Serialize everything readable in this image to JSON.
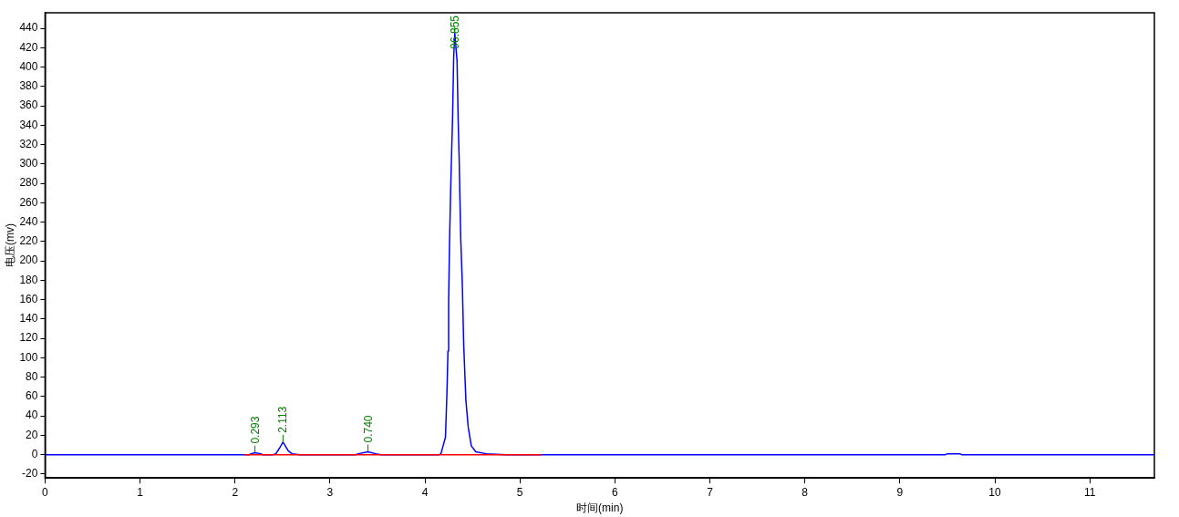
{
  "chart_data": {
    "type": "line",
    "xlabel": "时间(min)",
    "ylabel": "电压(mv)",
    "xlim": [
      0,
      11.68
    ],
    "xticks": [
      0,
      1,
      2,
      3,
      4,
      5,
      6,
      7,
      8,
      9,
      10,
      11
    ],
    "ylim": [
      -24,
      456
    ],
    "yticks": [
      -20,
      0,
      20,
      40,
      60,
      80,
      100,
      120,
      140,
      160,
      180,
      200,
      220,
      240,
      260,
      280,
      300,
      320,
      340,
      360,
      380,
      400,
      420,
      440
    ],
    "grid": false,
    "legend": false,
    "marker": "none",
    "line_style": "solid",
    "series": [
      {
        "color": "#0000ff",
        "x": [
          0,
          2.15,
          2.17,
          2.21,
          2.27,
          2.29,
          2.4,
          2.43,
          2.47,
          2.505,
          2.53,
          2.56,
          2.6,
          2.68,
          3.27,
          3.3,
          3.4,
          3.48,
          3.54,
          3.56,
          4.15,
          4.168,
          4.216,
          4.232,
          4.242,
          4.249,
          4.258,
          4.274,
          4.29,
          4.302,
          4.314,
          4.338,
          4.35,
          4.36,
          4.376,
          4.393,
          4.408,
          4.431,
          4.456,
          4.488,
          4.536,
          4.645,
          4.856,
          4.87,
          9.48,
          9.5,
          9.63,
          9.65,
          11.68
        ],
        "values": [
          0,
          0,
          1,
          2,
          1,
          0,
          0,
          1,
          7,
          13,
          9,
          4,
          1,
          0,
          0,
          1,
          3,
          1,
          0,
          0,
          0,
          1,
          18,
          66,
          107,
          157,
          217,
          288,
          345,
          409,
          435,
          406,
          343,
          305,
          225,
          177,
          113,
          56,
          28,
          9,
          3,
          1,
          0,
          0,
          0,
          1,
          1,
          0,
          0
        ]
      },
      {
        "color": "#ff0000",
        "x": [
          2.1,
          5.23
        ],
        "values": [
          0,
          0
        ]
      }
    ],
    "annotations": [
      {
        "text": "0.293",
        "x": 2.21,
        "y": 2
      },
      {
        "text": "2.113",
        "x": 2.505,
        "y": 13
      },
      {
        "text": "0.740",
        "x": 3.4,
        "y": 3
      },
      {
        "text": "96.855",
        "x": 4.314,
        "y": 435
      }
    ]
  }
}
